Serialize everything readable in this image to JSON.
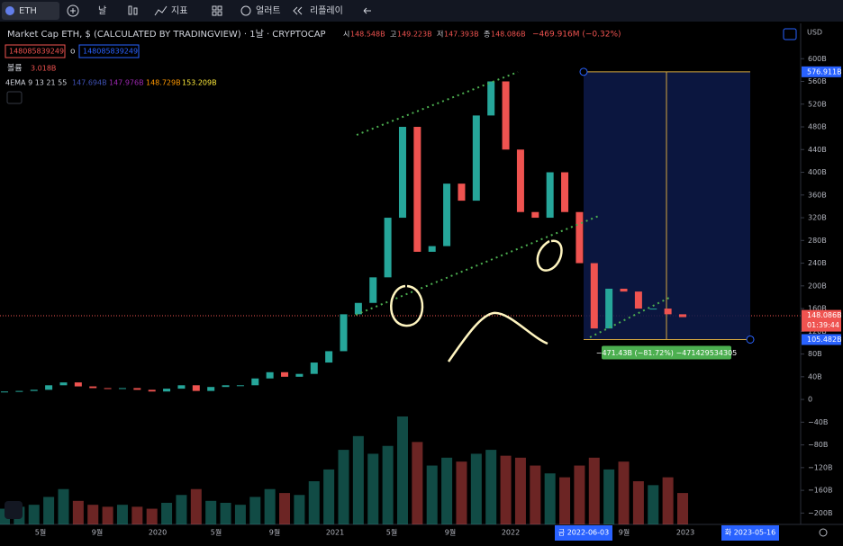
{
  "toolbar": {
    "symbol": "ETH",
    "interval": "날",
    "indicators": "지표",
    "alert": "얼러트",
    "replay": "리플레이"
  },
  "header": {
    "title": "Market Cap ETH, $ (CALCULATED BY TRADINGVIEW) · 1날 · CRYPTOCAP",
    "ohlc": [
      {
        "label": "시",
        "value": "148.548B"
      },
      {
        "label": "고",
        "value": "149.223B"
      },
      {
        "label": "저",
        "value": "147.393B"
      },
      {
        "label": "종",
        "value": "148.086B"
      }
    ],
    "change": "−469.916M (−0.32%)",
    "inputs": [
      "148085839249",
      "o",
      "148085839249"
    ],
    "volume_label": "볼륨",
    "volume_value": "3.018B",
    "ema_label": "4EMA 9 13 21 55",
    "ema_values": [
      "147.694B",
      "147.976B",
      "148.729B",
      "153.209B"
    ]
  },
  "chart_data": {
    "type": "candlestick",
    "currency": "USD",
    "values": [
      14,
      15,
      17,
      25,
      30,
      23,
      20,
      19,
      20,
      17,
      14,
      19,
      25,
      15,
      22,
      25,
      25,
      37,
      48,
      40,
      45,
      65,
      85,
      150,
      170,
      215,
      320,
      480,
      260,
      270,
      380,
      350,
      500,
      560,
      440,
      330,
      320,
      400,
      330,
      240,
      125,
      195,
      190,
      160,
      160,
      150,
      145
    ],
    "volume": [
      8,
      9,
      10,
      14,
      18,
      12,
      10,
      9,
      10,
      9,
      8,
      11,
      15,
      18,
      12,
      11,
      10,
      14,
      18,
      16,
      15,
      22,
      28,
      38,
      45,
      36,
      40,
      55,
      42,
      30,
      34,
      32,
      36,
      38,
      35,
      34,
      30,
      26,
      24,
      30,
      34,
      28,
      32,
      22,
      20,
      24,
      16
    ],
    "up_color": "#26a69a",
    "down_color": "#ef5350",
    "ylim": [
      -220,
      659
    ],
    "yticks": [
      {
        "value": 600,
        "label": "600B"
      },
      {
        "value": 560,
        "label": "560B"
      },
      {
        "value": 520,
        "label": "520B"
      },
      {
        "value": 480,
        "label": "480B"
      },
      {
        "value": 440,
        "label": "440B"
      },
      {
        "value": 400,
        "label": "400B"
      },
      {
        "value": 360,
        "label": "360B"
      },
      {
        "value": 320,
        "label": "320B"
      },
      {
        "value": 280,
        "label": "280B"
      },
      {
        "value": 240,
        "label": "240B"
      },
      {
        "value": 200,
        "label": "200B"
      },
      {
        "value": 160,
        "label": "160B"
      },
      {
        "value": 120,
        "label": "120B"
      },
      {
        "value": 80,
        "label": "80B"
      },
      {
        "value": 40,
        "label": "40B"
      },
      0,
      {
        "value": -40,
        "label": "−40B"
      },
      {
        "value": -80,
        "label": "−80B"
      },
      {
        "value": -120,
        "label": "−120B"
      },
      {
        "value": -160,
        "label": "−160B"
      },
      {
        "value": -200,
        "label": "−200B"
      }
    ],
    "time_labels": [
      "5월",
      "9월",
      "2020",
      "5월",
      "9월",
      "2021",
      "5월",
      "9월",
      "2022",
      "9월",
      "2023"
    ],
    "current_price": 148.086,
    "current_price_label": "148.086B",
    "countdown": "01:39:44",
    "measure": {
      "top": 576.911,
      "bottom": 105.482,
      "top_label": "576.911B",
      "bottom_label": "105.482B",
      "text": "−471.43B (−81.72%) −471429534305",
      "start": "금 2022-06-03",
      "end": "화 2023-05-16"
    }
  }
}
